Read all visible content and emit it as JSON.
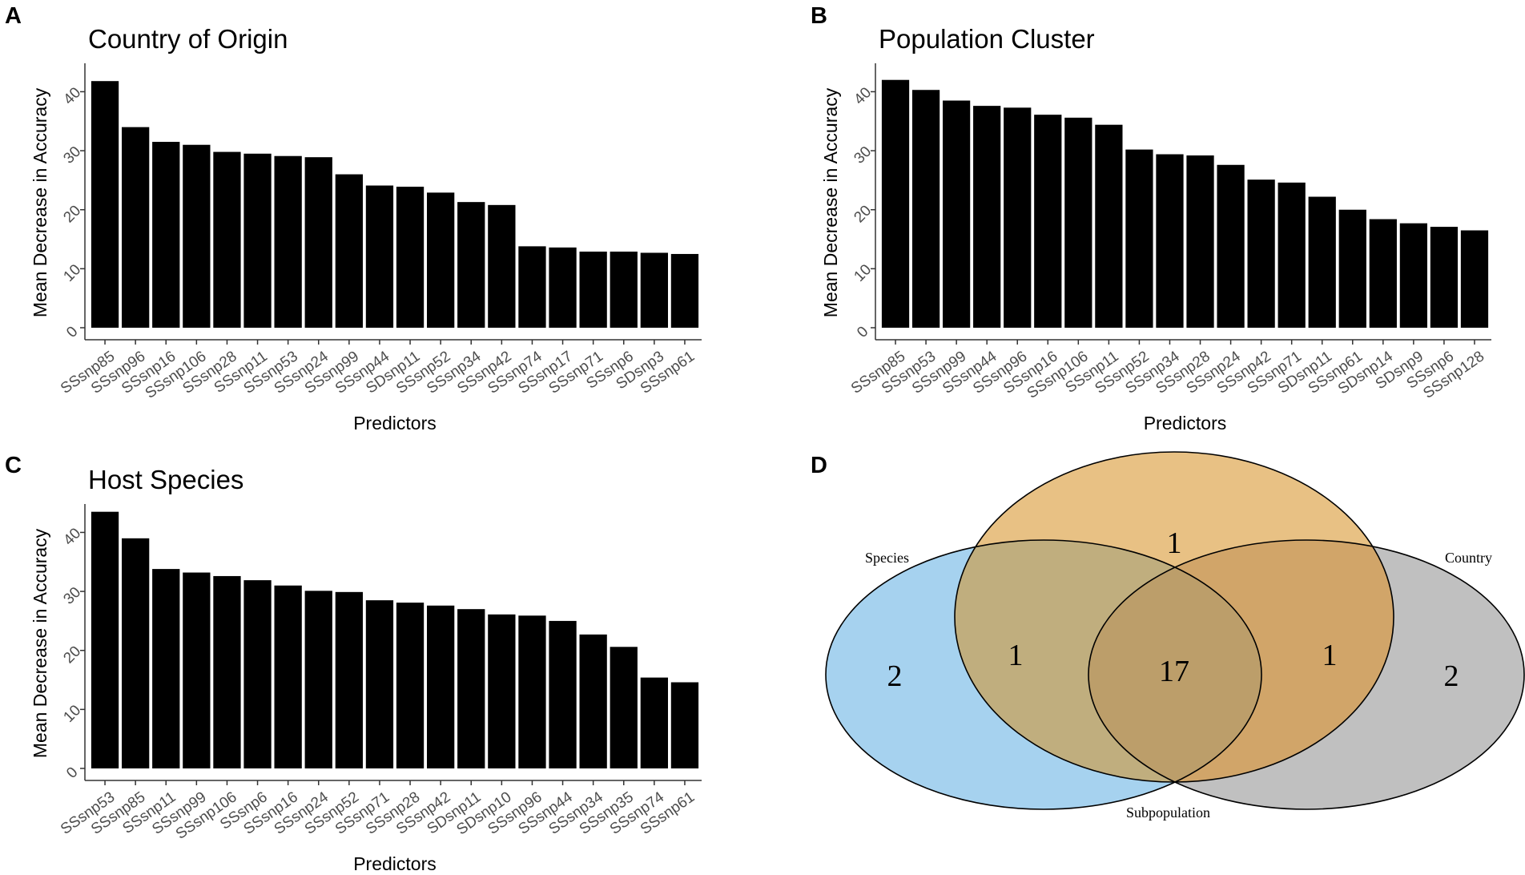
{
  "panels": {
    "a": "A",
    "b": "B",
    "c": "C",
    "d": "D"
  },
  "colors": {
    "bar": "#000000",
    "axis": "#333333",
    "venn_species": "#a6d2ef",
    "venn_subpopulation": "#e8c184",
    "venn_country": "#c0c0c0",
    "venn_species_subpop": "#c0ae7e",
    "venn_subpop_country": "#d1a569",
    "venn_all": "#bc9e6a"
  },
  "chart_data": [
    {
      "type": "bar",
      "title": "Country of Origin",
      "xlabel": "Predictors",
      "ylabel": "Mean Decrease in Accuracy",
      "ylim": [
        0,
        44
      ],
      "yticks": [
        0,
        10,
        20,
        30,
        40
      ],
      "categories": [
        "SSsnp85",
        "SSsnp96",
        "SSsnp16",
        "SSsnp106",
        "SSsnp28",
        "SSsnp11",
        "SSsnp53",
        "SSsnp24",
        "SSsnp99",
        "SSsnp44",
        "SDsnp11",
        "SSsnp52",
        "SSsnp34",
        "SSsnp42",
        "SSsnp74",
        "SSsnp17",
        "SSsnp71",
        "SSsnp6",
        "SDsnp3",
        "SSsnp61"
      ],
      "values": [
        41.8,
        34.0,
        31.5,
        31.0,
        29.8,
        29.5,
        29.1,
        28.9,
        26.0,
        24.1,
        23.9,
        22.9,
        21.3,
        20.8,
        13.8,
        13.6,
        12.9,
        12.9,
        12.7,
        12.5
      ]
    },
    {
      "type": "bar",
      "title": "Population Cluster",
      "xlabel": "Predictors",
      "ylabel": "Mean Decrease in Accuracy",
      "ylim": [
        0,
        44
      ],
      "yticks": [
        0,
        10,
        20,
        30,
        40
      ],
      "categories": [
        "SSsnp85",
        "SSsnp53",
        "SSsnp99",
        "SSsnp44",
        "SSsnp96",
        "SSsnp16",
        "SSsnp106",
        "SSsnp11",
        "SSsnp52",
        "SSsnp34",
        "SSsnp28",
        "SSsnp24",
        "SSsnp42",
        "SSsnp71",
        "SDsnp11",
        "SSsnp61",
        "SDsnp14",
        "SDsnp9",
        "SSsnp6",
        "SSsnp128"
      ],
      "values": [
        42.0,
        40.3,
        38.5,
        37.6,
        37.3,
        36.1,
        35.6,
        34.4,
        30.2,
        29.4,
        29.2,
        27.6,
        25.1,
        24.6,
        22.2,
        20.0,
        18.4,
        17.7,
        17.1,
        16.5
      ]
    },
    {
      "type": "bar",
      "title": "Host Species",
      "xlabel": "Predictors",
      "ylabel": "Mean Decrease in Accuracy",
      "ylim": [
        0,
        44
      ],
      "yticks": [
        0,
        10,
        20,
        30,
        40
      ],
      "categories": [
        "SSsnp53",
        "SSsnp85",
        "SSsnp11",
        "SSsnp99",
        "SSsnp106",
        "SSsnp6",
        "SSsnp16",
        "SSsnp24",
        "SSsnp52",
        "SSsnp71",
        "SSsnp28",
        "SSsnp42",
        "SDsnp11",
        "SDsnp10",
        "SSsnp96",
        "SSsnp44",
        "SSsnp34",
        "SSsnp35",
        "SSsnp74",
        "SSsnp61"
      ],
      "values": [
        43.5,
        39.0,
        33.8,
        33.2,
        32.6,
        31.9,
        31.0,
        30.1,
        29.9,
        28.5,
        28.1,
        27.6,
        27.0,
        26.1,
        25.9,
        25.0,
        22.7,
        20.6,
        15.4,
        14.6
      ]
    }
  ],
  "venn": {
    "labels": {
      "species": "Species",
      "subpopulation": "Subpopulation",
      "country": "Country"
    },
    "counts": {
      "species_only": "2",
      "subpopulation_only": "1",
      "country_only": "2",
      "species_subpopulation": "1",
      "subpopulation_country": "1",
      "all_three": "17"
    }
  }
}
